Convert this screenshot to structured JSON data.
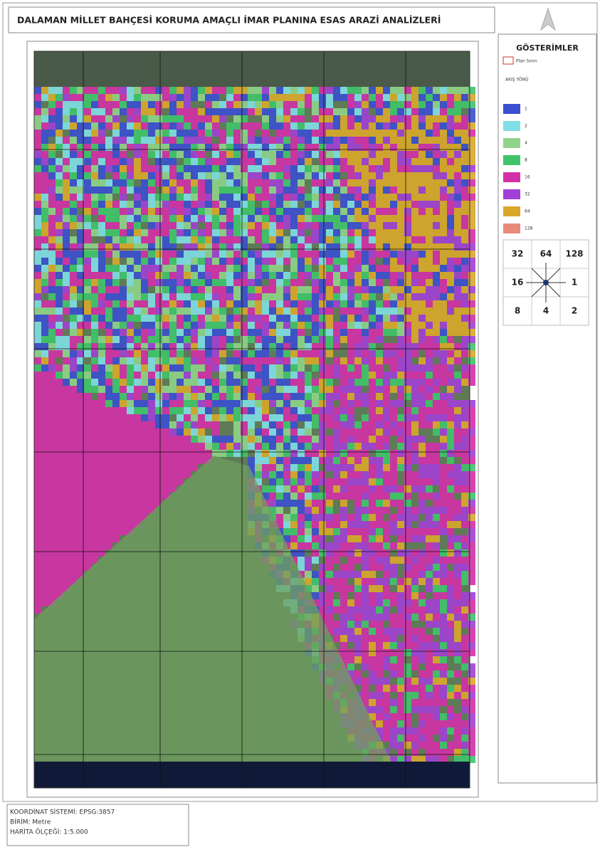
{
  "header": {
    "title": "DALAMAN MİLLET BAHÇESİ KORUMA AMAÇLI İMAR PLANINA ESAS ARAZİ ANALİZLERİ"
  },
  "legend": {
    "title": "GÖSTERİMLER",
    "boundary": "Plan Sınırı",
    "subtitle": "AKIŞ YÖNÜ",
    "classes": [
      {
        "label": "1",
        "color": "#3b4fd0"
      },
      {
        "label": "2",
        "color": "#7fe0e6"
      },
      {
        "label": "4",
        "color": "#8fd48a"
      },
      {
        "label": "8",
        "color": "#3fc46a"
      },
      {
        "label": "16",
        "color": "#d42fa8"
      },
      {
        "label": "32",
        "color": "#a23fd6"
      },
      {
        "label": "64",
        "color": "#d9a82a"
      },
      {
        "label": "128",
        "color": "#e88a7a"
      }
    ]
  },
  "direction_diagram": {
    "rows": [
      [
        "32",
        "64",
        "128"
      ],
      [
        "16",
        "",
        "1"
      ],
      [
        "8",
        "4",
        "2"
      ]
    ]
  },
  "info": {
    "lines": [
      "KOORDİNAT SİSTEMİ: EPSG:3857",
      "BİRİM: Metre",
      "HARİTA ÖLÇEĞİ: 1:5.000"
    ]
  }
}
